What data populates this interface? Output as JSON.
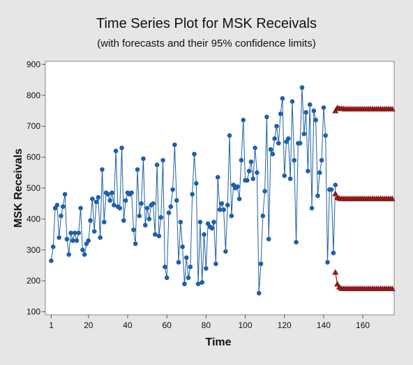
{
  "chart_data": {
    "type": "line",
    "title": "Time Series Plot for MSK Receivals",
    "subtitle": "(with forecasts and their 95% confidence limits)",
    "xlabel": "Time",
    "ylabel": "MSK Receivals",
    "xlim": [
      -2,
      176
    ],
    "ylim": [
      90,
      910
    ],
    "xticks": [
      1,
      20,
      40,
      60,
      80,
      100,
      120,
      140,
      160
    ],
    "yticks": [
      100,
      200,
      300,
      400,
      500,
      600,
      700,
      800,
      900
    ],
    "grid": false,
    "colors": {
      "background": "#e6e6e6",
      "plot_area": "#ffffff",
      "observed": "#1f5fa8",
      "forecast": "#8b1a1a"
    },
    "series": [
      {
        "marker": "circle",
        "x_start": 1,
        "values": [
          265,
          310,
          435,
          445,
          340,
          410,
          440,
          480,
          335,
          285,
          355,
          330,
          355,
          330,
          355,
          435,
          300,
          285,
          320,
          330,
          395,
          465,
          360,
          455,
          470,
          340,
          560,
          390,
          485,
          480,
          460,
          485,
          445,
          620,
          440,
          435,
          630,
          395,
          460,
          485,
          480,
          485,
          365,
          320,
          560,
          410,
          450,
          595,
          380,
          435,
          400,
          445,
          450,
          350,
          575,
          345,
          405,
          590,
          245,
          210,
          420,
          440,
          495,
          640,
          460,
          260,
          390,
          310,
          190,
          275,
          210,
          245,
          480,
          610,
          515,
          190,
          390,
          195,
          350,
          240,
          385,
          375,
          370,
          390,
          255,
          535,
          430,
          450,
          430,
          295,
          445,
          670,
          410,
          510,
          500,
          505,
          465,
          590,
          720,
          525,
          525,
          555,
          585,
          530,
          630,
          550,
          160,
          255,
          410,
          490,
          730,
          335,
          625,
          610,
          660,
          700,
          645,
          740,
          790,
          540,
          650,
          660,
          530,
          780,
          590,
          325,
          645,
          645,
          825,
          675,
          745,
          555,
          770,
          435,
          750,
          720,
          475,
          550,
          590,
          760,
          670,
          260,
          495,
          495,
          290,
          510
        ]
      },
      {
        "name": "",
        "marker": "triangle",
        "x_start": 146,
        "values": [
          750,
          760,
          758,
          757,
          757,
          756,
          756,
          756,
          756,
          756,
          756,
          756,
          756,
          756,
          756,
          756,
          756,
          756,
          756,
          756,
          756,
          756,
          756,
          756,
          756,
          756,
          756,
          756,
          756,
          756
        ]
      },
      {
        "name": "",
        "marker": "triangle",
        "x_start": 146,
        "values": [
          482,
          470,
          467,
          466,
          466,
          466,
          466,
          466,
          466,
          466,
          466,
          466,
          466,
          466,
          466,
          466,
          466,
          466,
          466,
          466,
          466,
          466,
          466,
          466,
          466,
          466,
          466,
          466,
          466,
          466
        ]
      },
      {
        "name": "",
        "marker": "triangle",
        "x_start": 146,
        "values": [
          228,
          190,
          180,
          176,
          175,
          175,
          175,
          175,
          175,
          175,
          175,
          175,
          175,
          175,
          175,
          175,
          175,
          175,
          175,
          175,
          175,
          175,
          175,
          175,
          175,
          175,
          175,
          175,
          175,
          175
        ]
      }
    ]
  }
}
